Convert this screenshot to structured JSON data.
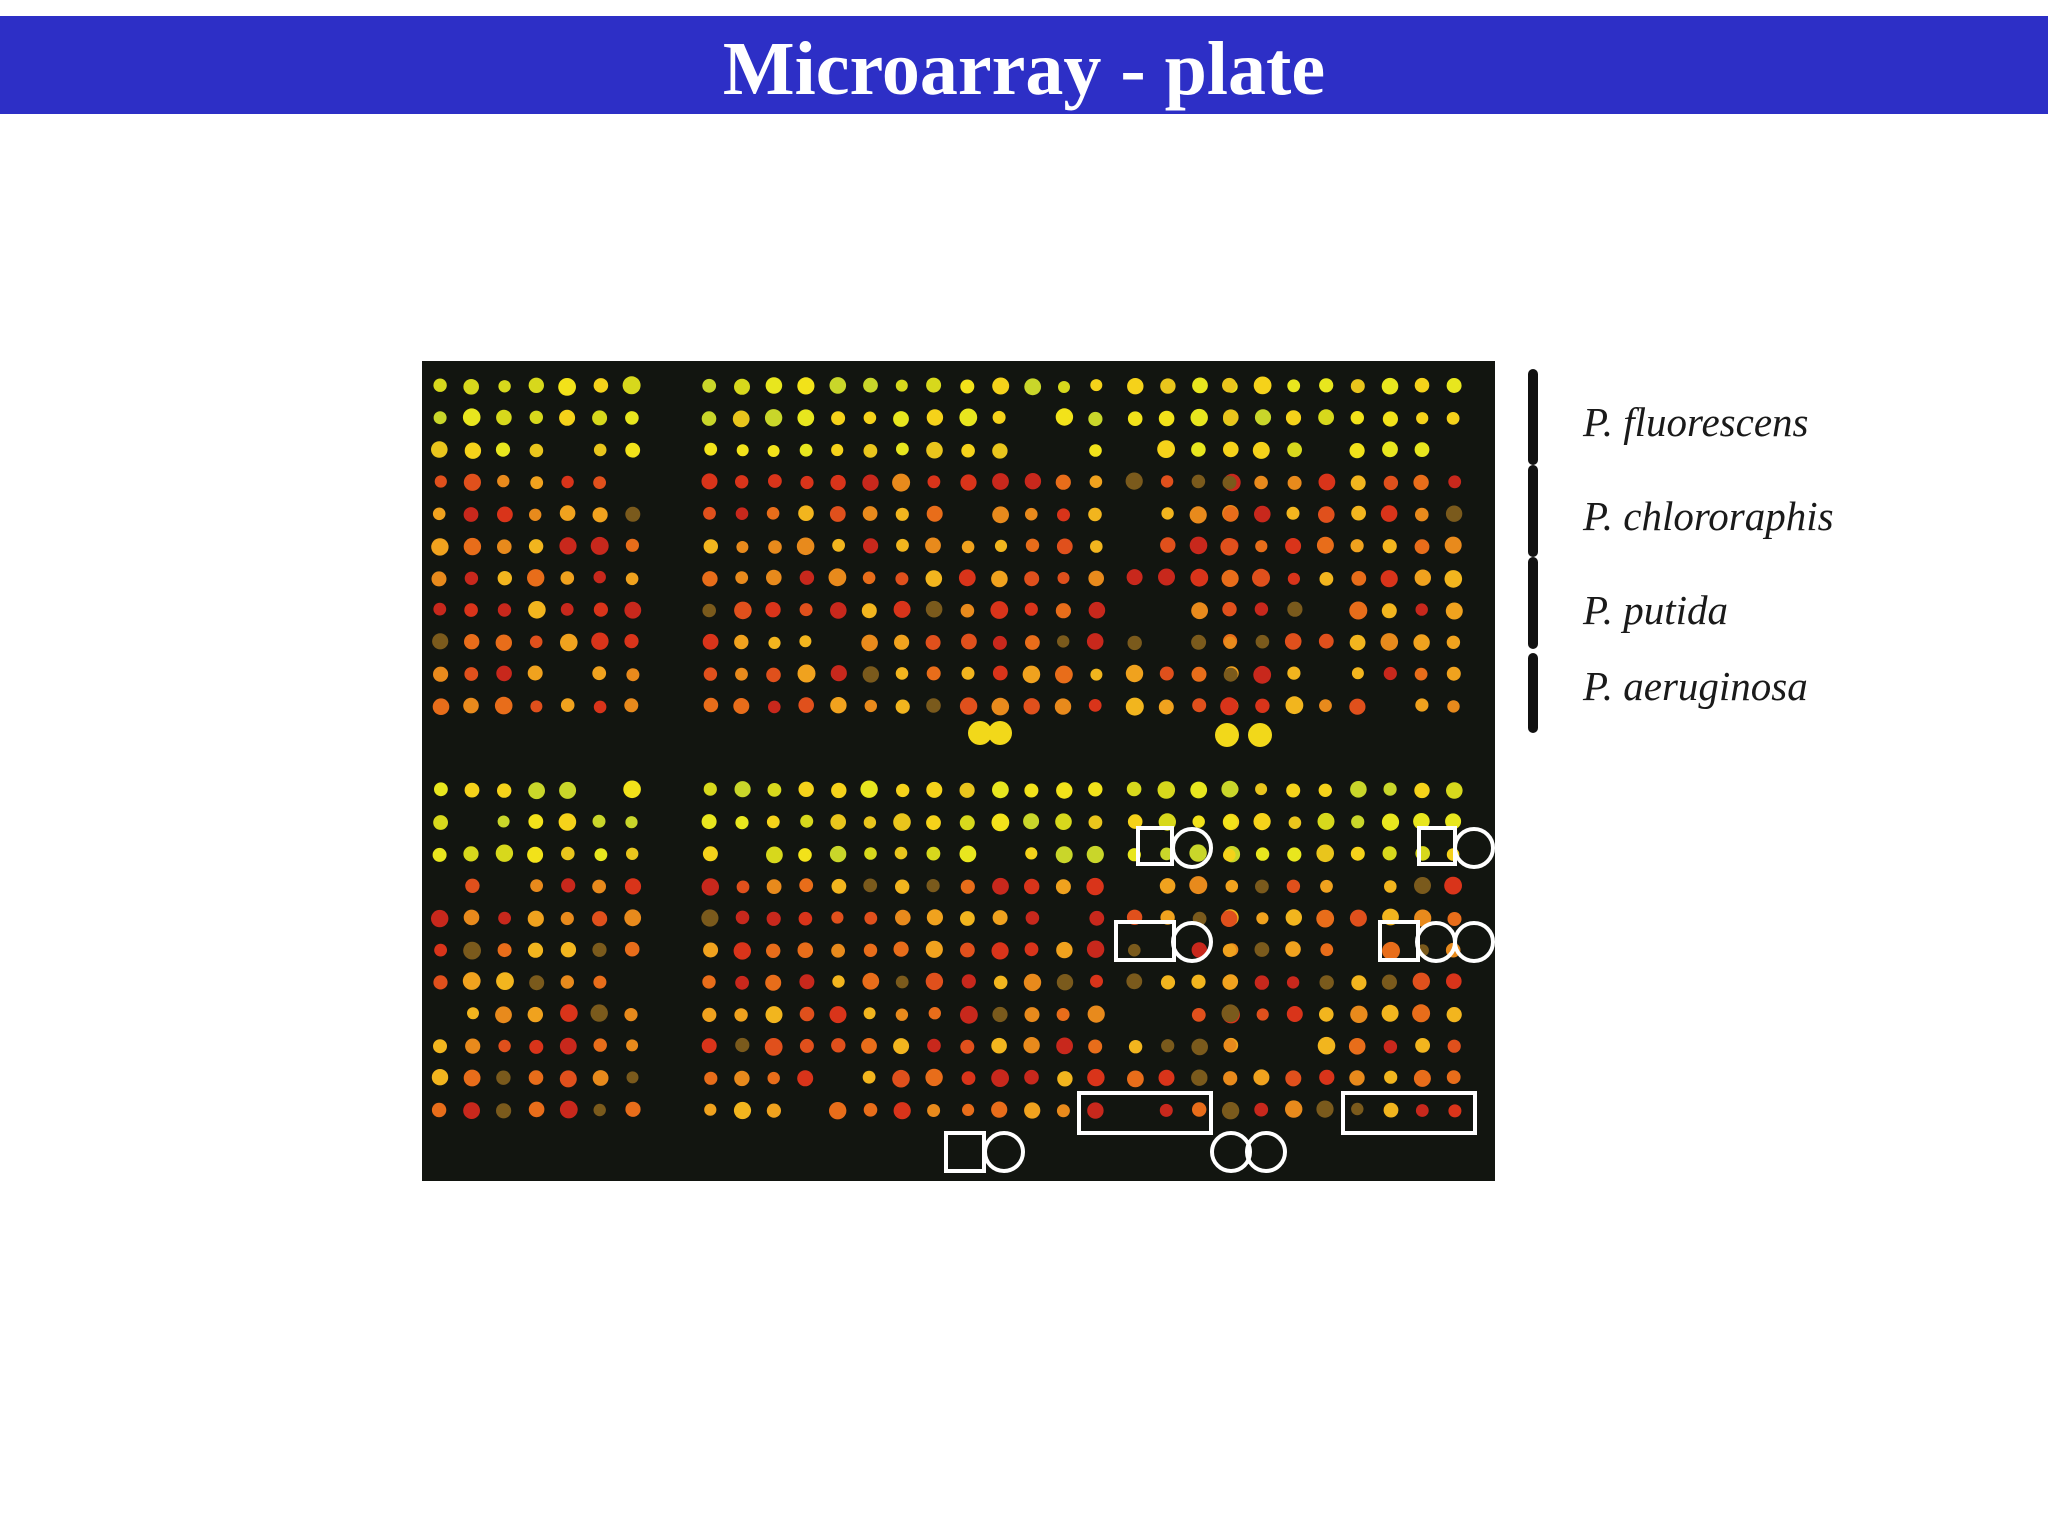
{
  "slide": {
    "title": "Microarray - plate"
  },
  "legend": {
    "items": [
      {
        "label": "P. fluorescens"
      },
      {
        "label": "P. chlororaphis"
      },
      {
        "label": "P. putida"
      },
      {
        "label": "P. aeruginosa"
      }
    ],
    "bar_color": "#111111"
  },
  "colors": {
    "title_bar": "#2d2fc6",
    "plate_background": "#121510",
    "highlight_outline": "#ffffff"
  }
}
